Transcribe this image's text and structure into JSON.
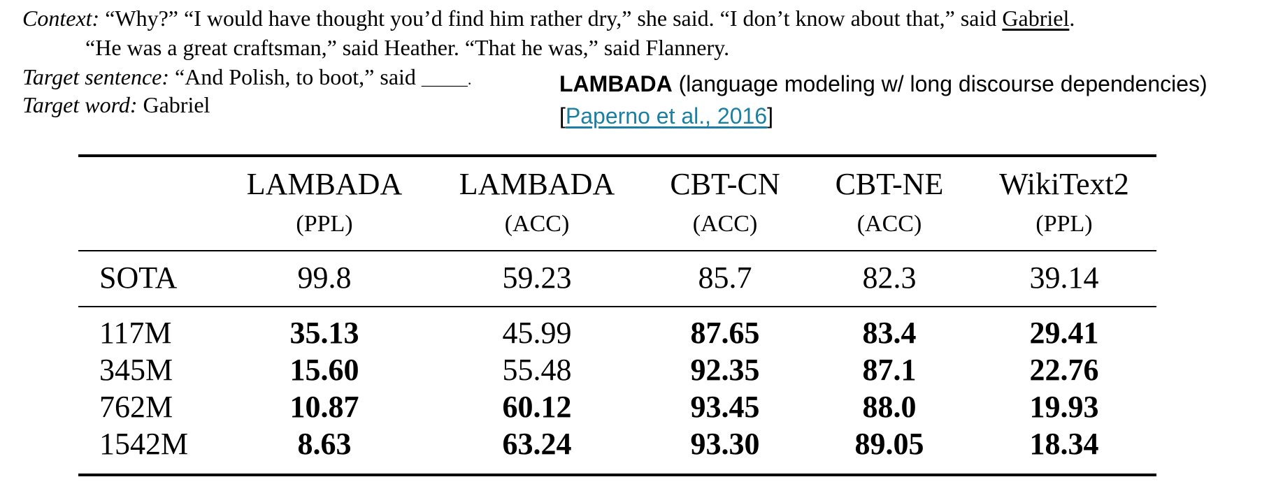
{
  "context": {
    "label": "Context:",
    "line1_before": " “Why?” “I would have thought you’d find him rather dry,” she said. “I don’t know about that,” said ",
    "line1_underlined": "Gabriel",
    "line1_after": ".",
    "line2": "“He was a great craftsman,” said Heather. “That he was,” said Flannery."
  },
  "target_sentence": {
    "label": "Target sentence:",
    "text": " “And Polish, to boot,” said ",
    "blank": "______."
  },
  "target_word": {
    "label": "Target word:",
    "text": " Gabriel"
  },
  "lambada_note": {
    "title_bold": "LAMBADA",
    "title_rest": " (language modeling w/ long discourse dependencies)",
    "cite_open": "[",
    "cite_link": "Paperno et al., 2016",
    "cite_close": "]",
    "link_color": "#1a7fa3"
  },
  "results_table": {
    "columns": [
      {
        "name": "LAMBADA",
        "metric": "(PPL)"
      },
      {
        "name": "LAMBADA",
        "metric": "(ACC)"
      },
      {
        "name": "CBT-CN",
        "metric": "(ACC)"
      },
      {
        "name": "CBT-NE",
        "metric": "(ACC)"
      },
      {
        "name": "WikiText2",
        "metric": "(PPL)"
      }
    ],
    "rows": [
      {
        "label": "SOTA",
        "values": [
          "99.8",
          "59.23",
          "85.7",
          "82.3",
          "39.14"
        ],
        "bold": [
          false,
          false,
          false,
          false,
          false
        ]
      },
      {
        "label": "117M",
        "values": [
          "35.13",
          "45.99",
          "87.65",
          "83.4",
          "29.41"
        ],
        "bold": [
          true,
          false,
          true,
          true,
          true
        ]
      },
      {
        "label": "345M",
        "values": [
          "15.60",
          "55.48",
          "92.35",
          "87.1",
          "22.76"
        ],
        "bold": [
          true,
          false,
          true,
          true,
          true
        ]
      },
      {
        "label": "762M",
        "values": [
          "10.87",
          "60.12",
          "93.45",
          "88.0",
          "19.93"
        ],
        "bold": [
          true,
          true,
          true,
          true,
          true
        ]
      },
      {
        "label": "1542M",
        "values": [
          "8.63",
          "63.24",
          "93.30",
          "89.05",
          "18.34"
        ],
        "bold": [
          true,
          true,
          true,
          true,
          true
        ]
      }
    ]
  }
}
